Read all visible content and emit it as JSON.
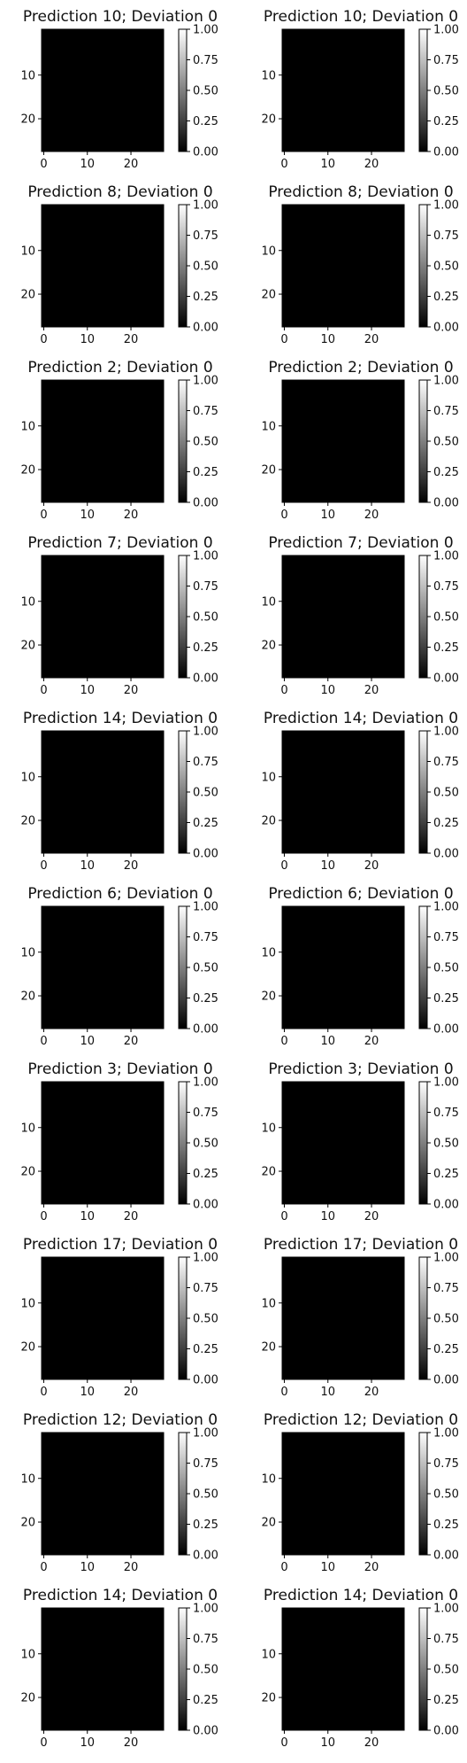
{
  "chart_data": {
    "type": "heatmap",
    "layout": "10 rows x 2 columns",
    "colormap": "gray",
    "image_size": [
      28,
      28
    ],
    "xticks": [
      "0",
      "10",
      "20"
    ],
    "yticks": [
      "10",
      "20"
    ],
    "colorbar": {
      "range": [
        0,
        1
      ],
      "ticks": [
        "1.00",
        "0.75",
        "0.50",
        "0.25",
        "0.00"
      ]
    },
    "panels": [
      {
        "prediction": 10,
        "deviation": 0,
        "title": "Prediction 10; Deviation 0"
      },
      {
        "prediction": 10,
        "deviation": 0,
        "title": "Prediction 10; Deviation 0"
      },
      {
        "prediction": 8,
        "deviation": 0,
        "title": "Prediction 8; Deviation 0"
      },
      {
        "prediction": 8,
        "deviation": 0,
        "title": "Prediction 8; Deviation 0"
      },
      {
        "prediction": 2,
        "deviation": 0,
        "title": "Prediction 2; Deviation 0"
      },
      {
        "prediction": 2,
        "deviation": 0,
        "title": "Prediction 2; Deviation 0"
      },
      {
        "prediction": 7,
        "deviation": 0,
        "title": "Prediction 7; Deviation 0"
      },
      {
        "prediction": 7,
        "deviation": 0,
        "title": "Prediction 7; Deviation 0"
      },
      {
        "prediction": 14,
        "deviation": 0,
        "title": "Prediction 14; Deviation 0"
      },
      {
        "prediction": 14,
        "deviation": 0,
        "title": "Prediction 14; Deviation 0"
      },
      {
        "prediction": 6,
        "deviation": 0,
        "title": "Prediction 6; Deviation 0"
      },
      {
        "prediction": 6,
        "deviation": 0,
        "title": "Prediction 6; Deviation 0"
      },
      {
        "prediction": 3,
        "deviation": 0,
        "title": "Prediction 3; Deviation 0"
      },
      {
        "prediction": 3,
        "deviation": 0,
        "title": "Prediction 3; Deviation 0"
      },
      {
        "prediction": 17,
        "deviation": 0,
        "title": "Prediction 17; Deviation 0"
      },
      {
        "prediction": 17,
        "deviation": 0,
        "title": "Prediction 17; Deviation 0"
      },
      {
        "prediction": 12,
        "deviation": 0,
        "title": "Prediction 12; Deviation 0"
      },
      {
        "prediction": 12,
        "deviation": 0,
        "title": "Prediction 12; Deviation 0"
      },
      {
        "prediction": 14,
        "deviation": 0,
        "title": "Prediction 14; Deviation 0"
      },
      {
        "prediction": 14,
        "deviation": 0,
        "title": "Prediction 14; Deviation 0"
      }
    ]
  }
}
